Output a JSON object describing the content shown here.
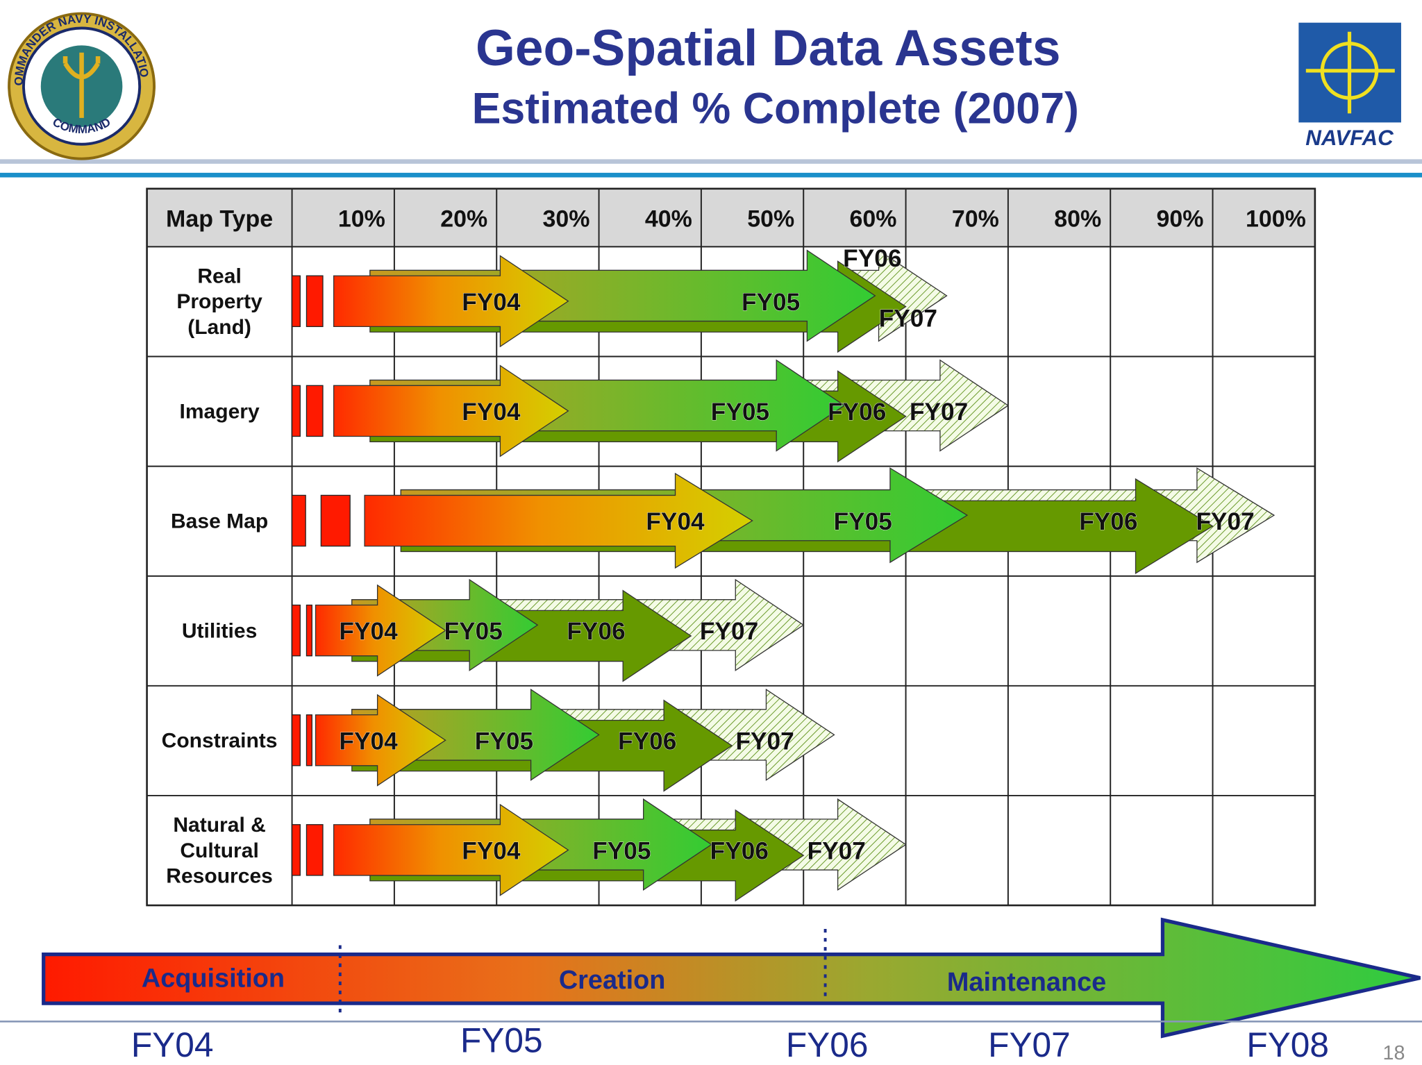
{
  "header": {
    "title": "Geo-Spatial Data Assets",
    "subtitle": "Estimated % Complete (2007)"
  },
  "logos": {
    "seal_top": "COMMANDER NAVY INSTALLATIONS",
    "seal_bottom": "COMMAND",
    "navfac": "NAVFAC"
  },
  "table": {
    "columns": [
      "Map Type",
      "10%",
      "20%",
      "30%",
      "40%",
      "50%",
      "60%",
      "70%",
      "80%",
      "90%",
      "100%"
    ],
    "rows": [
      {
        "label": [
          "Real",
          "Property",
          "(Land)"
        ],
        "segments": [
          {
            "label": "FY04",
            "end": 27
          },
          {
            "label": "FY05",
            "end": 57
          },
          {
            "label": "FY06",
            "end": 60
          },
          {
            "label": "FY07",
            "end": 64
          }
        ]
      },
      {
        "label": [
          "Imagery"
        ],
        "segments": [
          {
            "label": "FY04",
            "end": 27
          },
          {
            "label": "FY05",
            "end": 54
          },
          {
            "label": "FY06",
            "end": 60
          },
          {
            "label": "FY07",
            "end": 70
          }
        ]
      },
      {
        "label": [
          "Base Map"
        ],
        "segments": [
          {
            "label": "FY04",
            "end": 45
          },
          {
            "label": "FY05",
            "end": 66
          },
          {
            "label": "FY06",
            "end": 90
          },
          {
            "label": "FY07",
            "end": 96
          }
        ]
      },
      {
        "label": [
          "Utilities"
        ],
        "segments": [
          {
            "label": "FY04",
            "end": 15
          },
          {
            "label": "FY05",
            "end": 24
          },
          {
            "label": "FY06",
            "end": 39
          },
          {
            "label": "FY07",
            "end": 50
          }
        ]
      },
      {
        "label": [
          "Constraints"
        ],
        "segments": [
          {
            "label": "FY04",
            "end": 15
          },
          {
            "label": "FY05",
            "end": 30
          },
          {
            "label": "FY06",
            "end": 43
          },
          {
            "label": "FY07",
            "end": 53
          }
        ]
      },
      {
        "label": [
          "Natural &",
          "Cultural",
          "Resources"
        ],
        "segments": [
          {
            "label": "FY04",
            "end": 27
          },
          {
            "label": "FY05",
            "end": 41
          },
          {
            "label": "FY06",
            "end": 50
          },
          {
            "label": "FY07",
            "end": 60
          }
        ]
      }
    ]
  },
  "timeline": {
    "phases": [
      "Acquisition",
      "Creation",
      "Maintenance"
    ],
    "years": [
      "FY04",
      "FY05",
      "FY06",
      "FY07",
      "FY08"
    ]
  },
  "page_number": "18"
}
